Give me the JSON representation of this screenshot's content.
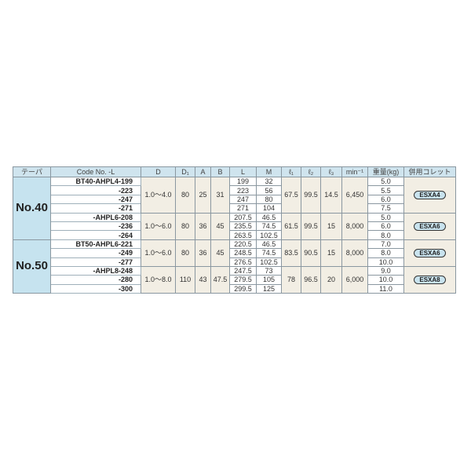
{
  "headers": [
    "テーパ",
    "Code No. -L",
    "D",
    "D₁",
    "A",
    "B",
    "L",
    "M",
    "ℓ₁",
    "ℓ₂",
    "ℓ₃",
    "min⁻¹",
    "重量(kg)",
    "併用コレット"
  ],
  "tapers": [
    {
      "label": "No.40",
      "groups": [
        {
          "D": "1.0～4.0",
          "D1": "80",
          "A": "25",
          "B": "31",
          "l1": "67.5",
          "l2": "99.5",
          "l3": "14.5",
          "min": "6,450",
          "collet": "ESXA4",
          "rows": [
            {
              "code": "BT40-AHPL4-199",
              "L": "199",
              "M": "32",
              "kg": "5.0"
            },
            {
              "code": "-223",
              "L": "223",
              "M": "56",
              "kg": "5.5"
            },
            {
              "code": "-247",
              "L": "247",
              "M": "80",
              "kg": "6.0"
            },
            {
              "code": "-271",
              "L": "271",
              "M": "104",
              "kg": "7.5"
            }
          ]
        },
        {
          "D": "1.0～6.0",
          "D1": "80",
          "A": "36",
          "B": "45",
          "l1": "61.5",
          "l2": "99.5",
          "l3": "15",
          "min": "8,000",
          "collet": "ESXA6",
          "rows": [
            {
              "code": "-AHPL6-208",
              "L": "207.5",
              "M": "46.5",
              "kg": "5.0"
            },
            {
              "code": "-236",
              "L": "235.5",
              "M": "74.5",
              "kg": "6.0"
            },
            {
              "code": "-264",
              "L": "263.5",
              "M": "102.5",
              "kg": "8.0"
            }
          ]
        }
      ]
    },
    {
      "label": "No.50",
      "groups": [
        {
          "D": "1.0～6.0",
          "D1": "80",
          "A": "36",
          "B": "45",
          "l1": "83.5",
          "l2": "90.5",
          "l3": "15",
          "min": "8,000",
          "collet": "ESXA6",
          "rows": [
            {
              "code": "BT50-AHPL6-221",
              "L": "220.5",
              "M": "46.5",
              "kg": "7.0"
            },
            {
              "code": "-249",
              "L": "248.5",
              "M": "74.5",
              "kg": "8.0"
            },
            {
              "code": "-277",
              "L": "276.5",
              "M": "102.5",
              "kg": "10.0"
            }
          ]
        },
        {
          "D": "1.0～8.0",
          "D1": "110",
          "A": "43",
          "B": "47.5",
          "l1": "78",
          "l2": "96.5",
          "l3": "20",
          "min": "6,000",
          "collet": "ESXA8",
          "rows": [
            {
              "code": "-AHPL8-248",
              "L": "247.5",
              "M": "73",
              "kg": "9.0"
            },
            {
              "code": "-280",
              "L": "279.5",
              "M": "105",
              "kg": "10.0"
            },
            {
              "code": "-300",
              "L": "299.5",
              "M": "125",
              "kg": "11.0"
            }
          ]
        }
      ]
    }
  ]
}
